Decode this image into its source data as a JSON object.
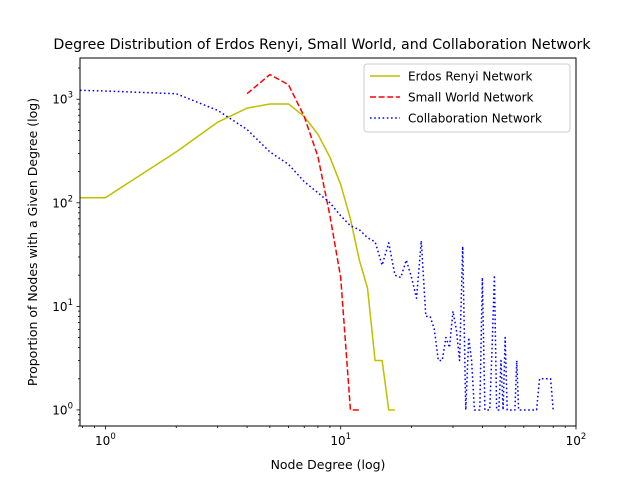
{
  "chart_data": {
    "type": "line",
    "title": "Degree Distribution of Erdos Renyi, Small World, and Collaboration Network",
    "xlabel": "Node Degree (log)",
    "ylabel": "Proportion of Nodes with a Given Degree (log)",
    "xscale": "log",
    "yscale": "log",
    "xlim": [
      0.78,
      100
    ],
    "ylim": [
      0.7,
      2500
    ],
    "grid": false,
    "legend_position": "upper-right",
    "xticks": [
      {
        "value": 1,
        "base": "10",
        "exp": "0"
      },
      {
        "value": 10,
        "base": "10",
        "exp": "1"
      },
      {
        "value": 100,
        "base": "10",
        "exp": "2"
      }
    ],
    "yticks": [
      {
        "value": 1,
        "base": "10",
        "exp": "0"
      },
      {
        "value": 10,
        "base": "10",
        "exp": "1"
      },
      {
        "value": 100,
        "base": "10",
        "exp": "2"
      },
      {
        "value": 1000,
        "base": "10",
        "exp": "3"
      }
    ],
    "series": [
      {
        "name": "Erdos Renyi Network",
        "color": "#bfbf00",
        "dash": "solid",
        "x": [
          0.78,
          1,
          2,
          3,
          4,
          5,
          6,
          7,
          8,
          9,
          10,
          11,
          12,
          13,
          14,
          15,
          16,
          17
        ],
        "y": [
          112,
          112,
          310,
          600,
          820,
          900,
          900,
          680,
          460,
          275,
          150,
          70,
          28,
          15,
          3,
          3,
          1,
          1
        ]
      },
      {
        "name": "Small World Network",
        "color": "#ff0000",
        "dash": "dashed",
        "x": [
          4,
          5,
          6,
          7,
          8,
          9,
          10,
          11,
          12
        ],
        "y": [
          1130,
          1730,
          1380,
          680,
          280,
          75,
          19,
          1,
          1
        ]
      },
      {
        "name": "Collaboration Network",
        "color": "#0000ff",
        "dash": "dotted",
        "x": [
          0.78,
          1,
          2,
          3,
          4,
          5,
          6,
          7,
          8,
          9,
          10,
          11,
          12,
          13,
          14,
          15,
          16,
          17,
          18,
          19,
          20,
          21,
          22,
          23,
          24,
          25,
          26,
          27,
          28,
          29,
          30,
          31,
          32,
          33,
          34,
          35,
          36,
          37,
          38,
          39,
          40,
          41,
          42,
          43,
          44,
          45,
          46,
          47,
          48,
          49,
          50,
          51,
          52,
          53,
          54,
          55,
          56,
          57,
          58,
          59,
          60,
          62,
          64,
          66,
          68,
          70,
          72,
          74,
          76,
          78,
          80
        ],
        "y": [
          1220,
          1200,
          1130,
          780,
          510,
          310,
          235,
          160,
          125,
          100,
          75,
          60,
          55,
          46,
          42,
          25,
          41,
          20,
          19,
          28,
          19,
          12,
          43,
          8,
          8,
          6,
          3,
          3,
          5,
          4,
          9,
          6,
          3,
          38,
          1,
          5,
          3,
          1,
          1,
          1,
          19,
          1,
          1,
          1,
          4,
          20,
          1,
          1,
          3,
          1,
          5,
          1,
          1,
          1,
          1,
          1,
          3,
          1,
          1,
          1,
          1,
          1,
          1,
          1,
          1,
          2,
          2,
          2,
          2,
          2,
          1
        ]
      }
    ]
  }
}
